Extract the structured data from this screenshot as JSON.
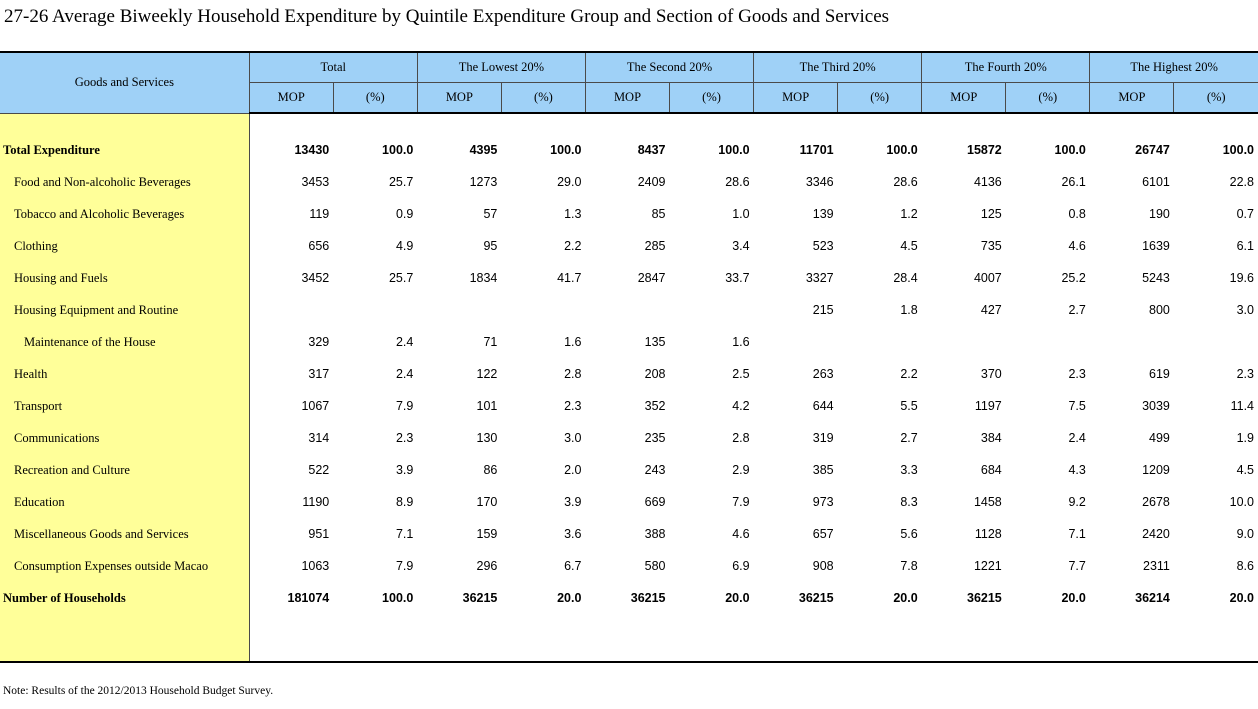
{
  "title": "27-26  Average Biweekly Household Expenditure by Quintile Expenditure Group and Section of Goods and Services",
  "header": {
    "row_label": "Goods and Services",
    "groups": [
      "Total",
      "The Lowest 20%",
      "The Second 20%",
      "The Third 20%",
      "The Fourth 20%",
      "The Highest 20%"
    ],
    "sub_mop": "MOP",
    "sub_pct": "(%)"
  },
  "rows": [
    {
      "label": "Total Expenditure",
      "v": [
        "13430",
        "100.0",
        "4395",
        "100.0",
        "8437",
        "100.0",
        "11701",
        "100.0",
        "15872",
        "100.0",
        "26747",
        "100.0"
      ]
    },
    {
      "label": "Food and Non-alcoholic Beverages",
      "v": [
        "3453",
        "25.7",
        "1273",
        "29.0",
        "2409",
        "28.6",
        "3346",
        "28.6",
        "4136",
        "26.1",
        "6101",
        "22.8"
      ]
    },
    {
      "label": "Tobacco and Alcoholic Beverages",
      "v": [
        "119",
        "0.9",
        "57",
        "1.3",
        "85",
        "1.0",
        "139",
        "1.2",
        "125",
        "0.8",
        "190",
        "0.7"
      ]
    },
    {
      "label": "Clothing",
      "v": [
        "656",
        "4.9",
        "95",
        "2.2",
        "285",
        "3.4",
        "523",
        "4.5",
        "735",
        "4.6",
        "1639",
        "6.1"
      ]
    },
    {
      "label": "Housing and Fuels",
      "v": [
        "3452",
        "25.7",
        "1834",
        "41.7",
        "2847",
        "33.7",
        "3327",
        "28.4",
        "4007",
        "25.2",
        "5243",
        "19.6"
      ]
    },
    {
      "label": "Housing Equipment and Routine",
      "v": [
        "",
        "",
        "",
        "",
        "",
        "",
        "215",
        "1.8",
        "427",
        "2.7",
        "800",
        "3.0"
      ]
    },
    {
      "label": "Maintenance of the House",
      "v": [
        "329",
        "2.4",
        "71",
        "1.6",
        "135",
        "1.6",
        "",
        "",
        "",
        "",
        "",
        ""
      ]
    },
    {
      "label": "Health",
      "v": [
        "317",
        "2.4",
        "122",
        "2.8",
        "208",
        "2.5",
        "263",
        "2.2",
        "370",
        "2.3",
        "619",
        "2.3"
      ]
    },
    {
      "label": "Transport",
      "v": [
        "1067",
        "7.9",
        "101",
        "2.3",
        "352",
        "4.2",
        "644",
        "5.5",
        "1197",
        "7.5",
        "3039",
        "11.4"
      ]
    },
    {
      "label": "Communications",
      "v": [
        "314",
        "2.3",
        "130",
        "3.0",
        "235",
        "2.8",
        "319",
        "2.7",
        "384",
        "2.4",
        "499",
        "1.9"
      ]
    },
    {
      "label": "Recreation and Culture",
      "v": [
        "522",
        "3.9",
        "86",
        "2.0",
        "243",
        "2.9",
        "385",
        "3.3",
        "684",
        "4.3",
        "1209",
        "4.5"
      ]
    },
    {
      "label": "Education",
      "v": [
        "1190",
        "8.9",
        "170",
        "3.9",
        "669",
        "7.9",
        "973",
        "8.3",
        "1458",
        "9.2",
        "2678",
        "10.0"
      ]
    },
    {
      "label": "Miscellaneous Goods and Services",
      "v": [
        "951",
        "7.1",
        "159",
        "3.6",
        "388",
        "4.6",
        "657",
        "5.6",
        "1128",
        "7.1",
        "2420",
        "9.0"
      ]
    },
    {
      "label": "Consumption Expenses outside Macao",
      "v": [
        "1063",
        "7.9",
        "296",
        "6.7",
        "580",
        "6.9",
        "908",
        "7.8",
        "1221",
        "7.7",
        "2311",
        "8.6"
      ]
    },
    {
      "label": "Number of Households",
      "v": [
        "181074",
        "100.0",
        "36215",
        "20.0",
        "36215",
        "20.0",
        "36215",
        "20.0",
        "36215",
        "20.0",
        "36214",
        "20.0"
      ]
    }
  ],
  "note": "Note: Results of the 2012/2013 Household Budget Survey.",
  "colors": {
    "header_bg": "#9fd1f7",
    "label_bg": "#ffff99"
  }
}
